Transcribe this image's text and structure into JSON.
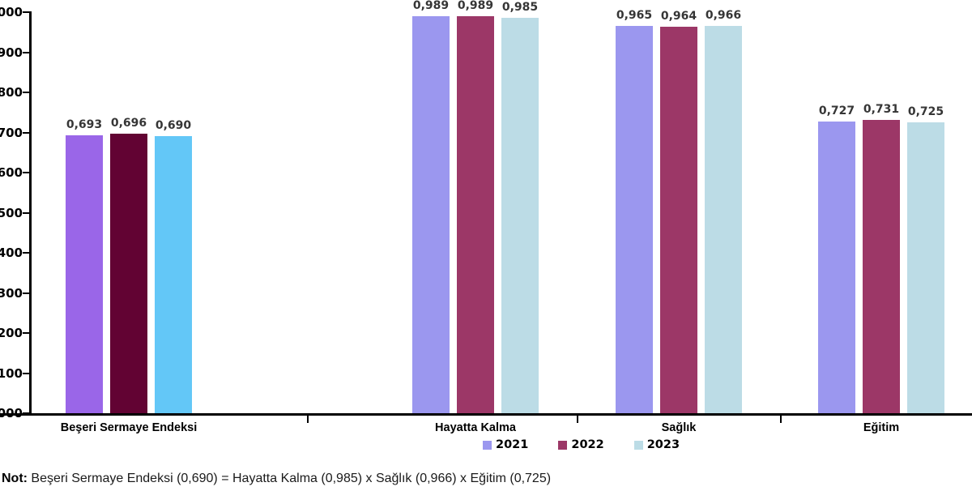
{
  "chart_data": {
    "type": "bar",
    "categories": [
      "Beşeri Sermaye Endeksi",
      "Hayatta Kalma",
      "Sağlık",
      "Eğitim"
    ],
    "series": [
      {
        "name": "2021",
        "values": [
          0.693,
          0.989,
          0.965,
          0.727
        ],
        "color": "#9b97ef",
        "highlight_color": "#9a66e8"
      },
      {
        "name": "2022",
        "values": [
          0.696,
          0.989,
          0.964,
          0.731
        ],
        "color": "#9c3767",
        "highlight_color": "#620333"
      },
      {
        "name": "2023",
        "values": [
          0.69,
          0.985,
          0.966,
          0.725
        ],
        "color": "#bcdce6",
        "highlight_color": "#63c7f7"
      }
    ],
    "value_label_format": "comma-decimal-3",
    "highlighted_category_index": 0,
    "ylim": [
      0,
      1
    ],
    "ytick_step": 0.1,
    "ytick_labels_visible": [
      "000",
      "900",
      "800",
      "700",
      "600",
      "500",
      "400",
      "300",
      "200",
      "100",
      "000"
    ],
    "grid": false,
    "legend": {
      "position": "bottom",
      "entries": [
        "2021",
        "2022",
        "2023"
      ]
    },
    "title": "",
    "xlabel": "",
    "ylabel": ""
  },
  "note": {
    "prefix": "Not:",
    "text": " Beşeri Sermaye Endeksi (0,690) = Hayatta Kalma (0,985) x Sağlık (0,966) x Eğitim (0,725)"
  }
}
